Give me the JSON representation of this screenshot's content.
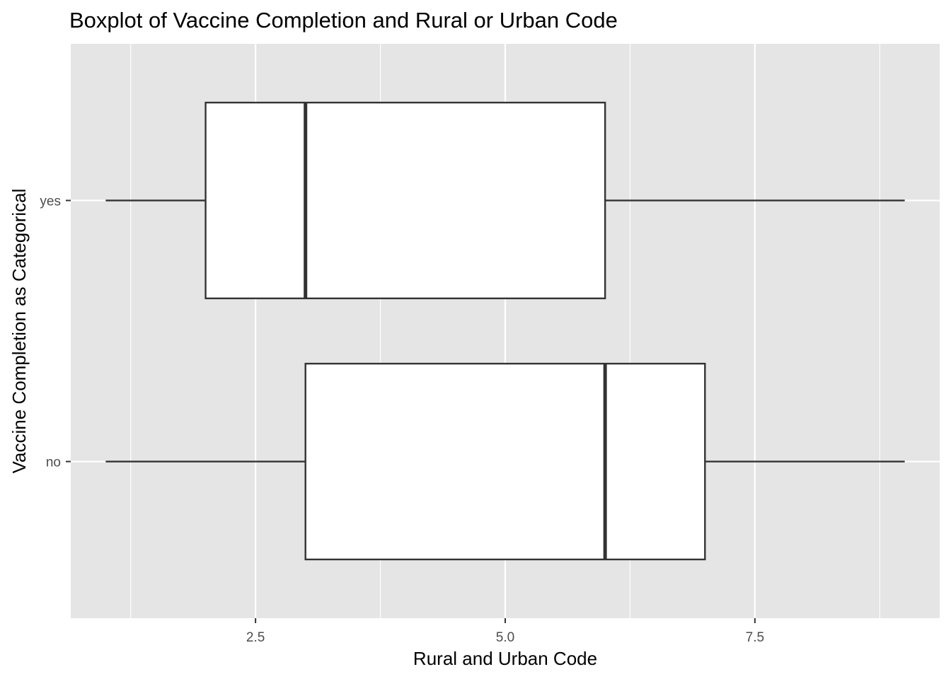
{
  "chart_data": {
    "type": "boxplot",
    "orientation": "horizontal",
    "title": "Boxplot of Vaccine Completion and Rural or Urban Code",
    "xlabel": "Rural and Urban Code",
    "ylabel": "Vaccine Completion as Categorical",
    "xlim": [
      0.65,
      9.35
    ],
    "x_ticks": [
      2.5,
      5.0,
      7.5
    ],
    "x_tick_labels": [
      "2.5",
      "5.0",
      "7.5"
    ],
    "x_minor_ticks": [
      1.25,
      3.75,
      6.25,
      8.75
    ],
    "categories": [
      "no",
      "yes"
    ],
    "boxes": [
      {
        "category": "no",
        "min": 1,
        "q1": 3,
        "median": 6,
        "q3": 7,
        "max": 9
      },
      {
        "category": "yes",
        "min": 1,
        "q1": 2,
        "median": 3,
        "q3": 6,
        "max": 9
      }
    ],
    "grid": true,
    "colors": {
      "panel_background": "#e5e5e5",
      "grid": "#ffffff",
      "box_fill": "#ffffff",
      "box_stroke": "#333333",
      "tick_mark": "#333333"
    }
  }
}
